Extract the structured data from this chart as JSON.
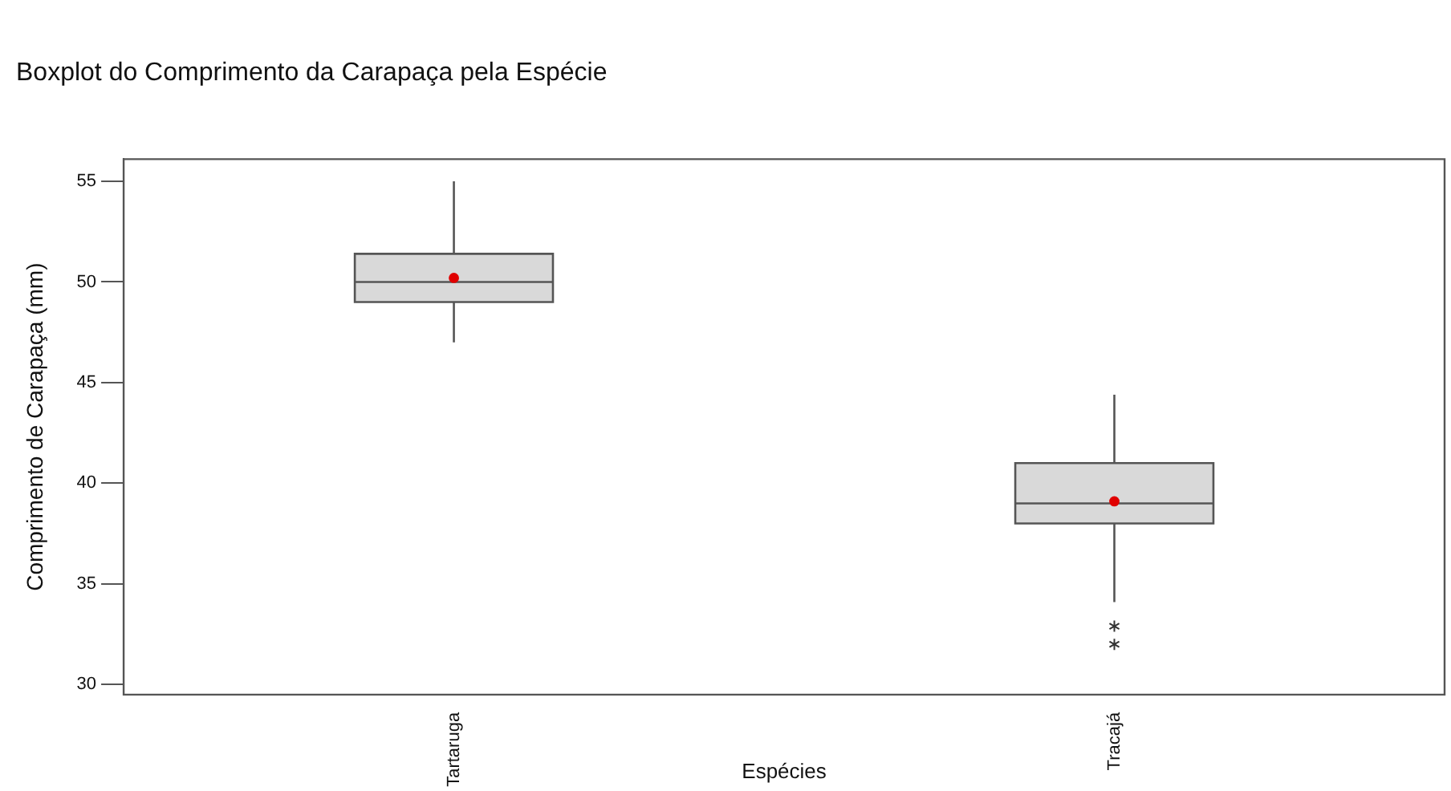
{
  "chart_data": {
    "type": "box",
    "title": "Boxplot do Comprimento da Carapaça pela Espécie",
    "xlabel": "Espécies",
    "ylabel": "Comprimento de Carapaça (mm)",
    "categories": [
      "Tartaruga",
      "Tracajá"
    ],
    "series": [
      {
        "color": "#d9d9d9",
        "boxes": [
          {
            "low": 47,
            "q1": 49,
            "median": 50,
            "q3": 51.4,
            "high": 55,
            "mean": 50.2
          },
          {
            "low": 34.1,
            "q1": 38,
            "median": 39,
            "q3": 41,
            "high": 44.4,
            "mean": 39.1,
            "outliers": [
              32.9,
              32
            ]
          }
        ]
      }
    ],
    "ylim": [
      29.5,
      56.1
    ],
    "yticks": [
      30,
      35,
      40,
      45,
      50,
      55
    ],
    "grid": false,
    "legend": false
  }
}
